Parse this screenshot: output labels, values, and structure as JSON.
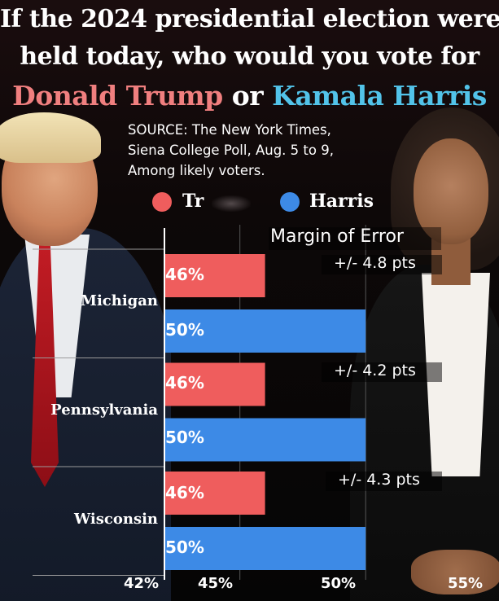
{
  "header": {
    "line1": "If the 2024 presidential election were",
    "line2": "held today, who would you vote for",
    "candidate1": "Donald Trump",
    "or_word": "or",
    "candidate2": "Kamala Harris"
  },
  "source": {
    "line1": "SOURCE: The New York Times,",
    "line2": "Siena College Poll, Aug. 5 to 9,",
    "line3": "Among likely voters."
  },
  "colors": {
    "trump": "#ef5d5d",
    "harris": "#3d8ae6",
    "title_trump": "#f07f7f",
    "title_harris": "#52c3e9"
  },
  "chart_data": {
    "type": "bar",
    "orientation": "horizontal",
    "categories": [
      "Michigan",
      "Pennsylvania",
      "Wisconsin"
    ],
    "series": [
      {
        "name": "Trump",
        "values": [
          46,
          46,
          46
        ],
        "labels": [
          "46%",
          "46%",
          "46%"
        ]
      },
      {
        "name": "Harris",
        "values": [
          50,
          50,
          50
        ],
        "labels": [
          "50%",
          "50%",
          "50%"
        ]
      }
    ],
    "legend": [
      "Tr",
      "Harris"
    ],
    "legend_placement": "top",
    "margin_of_error_title": "Margin of Error",
    "margin_of_error": [
      "+/- 4.8 pts",
      "+/- 4.2 pts",
      "+/- 4.3 pts"
    ],
    "xlim": [
      42,
      55
    ],
    "xticks": [
      42,
      45,
      50,
      55
    ],
    "xtick_labels": [
      "42%",
      "45%",
      "50%",
      "55%"
    ],
    "grid": true
  }
}
